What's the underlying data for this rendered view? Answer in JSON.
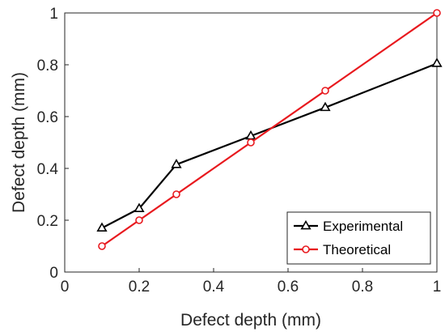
{
  "colors": {
    "axis": "#262626",
    "experimental": "#000000",
    "theoretical": "#e8191e"
  },
  "chart_data": {
    "type": "line",
    "title": "",
    "xlabel": "Defect depth (mm)",
    "ylabel": "Defect depth (mm)",
    "xlim": [
      0,
      1
    ],
    "ylim": [
      0,
      1
    ],
    "xticks": [
      "0",
      "0.2",
      "0.4",
      "0.6",
      "0.8",
      "1"
    ],
    "yticks": [
      "0",
      "0.2",
      "0.4",
      "0.6",
      "0.8",
      "1"
    ],
    "grid": false,
    "legend_position": "bottom-right",
    "series": [
      {
        "name": "Experimental",
        "marker": "triangle",
        "color": "#000000",
        "x": [
          0.1,
          0.2,
          0.3,
          0.5,
          0.7,
          1.0
        ],
        "y": [
          0.17,
          0.245,
          0.415,
          0.525,
          0.635,
          0.805
        ]
      },
      {
        "name": "Theoretical",
        "marker": "circle",
        "color": "#e8191e",
        "x": [
          0.1,
          0.2,
          0.3,
          0.5,
          0.7,
          1.0
        ],
        "y": [
          0.1,
          0.2,
          0.3,
          0.5,
          0.7,
          1.0
        ]
      }
    ]
  }
}
